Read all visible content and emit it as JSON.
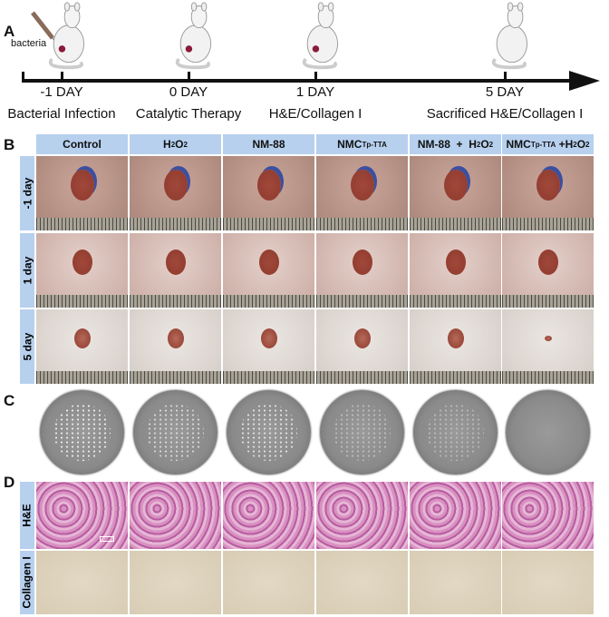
{
  "panel_labels": {
    "a": "A",
    "b": "B",
    "c": "C",
    "d": "D"
  },
  "timeline": {
    "injection_label": "bacteria",
    "points": [
      {
        "day": "-1 DAY",
        "desc": "Bacterial Infection"
      },
      {
        "day": "0 DAY",
        "desc": "Catalytic Therapy"
      },
      {
        "day": "1 DAY",
        "desc": "H&E/Collagen I"
      },
      {
        "day": "5 DAY",
        "desc": "Sacrificed H&E/Collagen I"
      }
    ]
  },
  "groups": [
    {
      "parts": [
        {
          "t": "Control"
        }
      ]
    },
    {
      "parts": [
        {
          "t": "H"
        },
        {
          "t": "2",
          "sub": true
        },
        {
          "t": "O"
        },
        {
          "t": "2",
          "sub": true
        }
      ]
    },
    {
      "parts": [
        {
          "t": "NM-88"
        }
      ]
    },
    {
      "parts": [
        {
          "t": "NMC"
        },
        {
          "t": "Tp-TTA",
          "sub": true
        }
      ]
    },
    {
      "parts": [
        {
          "t": "NM-88  +  H"
        },
        {
          "t": "2",
          "sub": true
        },
        {
          "t": "O"
        },
        {
          "t": "2",
          "sub": true
        }
      ]
    },
    {
      "parts": [
        {
          "t": "NMC"
        },
        {
          "t": "Tp-TTA",
          "sub": true
        },
        {
          "t": " +H"
        },
        {
          "t": "2",
          "sub": true
        },
        {
          "t": "O"
        },
        {
          "t": "2",
          "sub": true
        }
      ]
    }
  ],
  "wound_rows": [
    "-1 day",
    "1 day",
    "5 day"
  ],
  "histology_rows": [
    "H&E",
    "Collagen I"
  ],
  "colors": {
    "header_bg": "#b7d0ee",
    "wound": "#8e3a2e",
    "he": "#c46fa8",
    "collagen": "#d8ccb4"
  }
}
